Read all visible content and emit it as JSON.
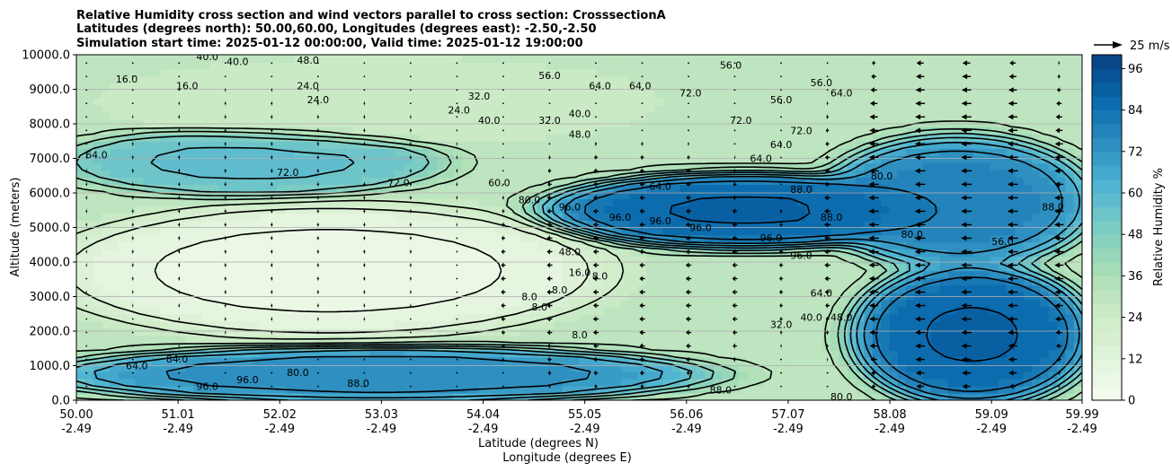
{
  "chart_data": {
    "type": "contour",
    "title_lines": [
      "Relative Humidity cross section and wind vectors parallel to cross section: CrosssectionA",
      "Latitudes (degrees north): 50.00,60.00, Longitudes (degrees east): -2.50,-2.50",
      "Simulation start time: 2025-01-12 00:00:00, Valid time: 2025-01-12 19:00:00"
    ],
    "xlabel_lat": "Latitude (degrees N)",
    "xlabel_lon": "Longitude (degrees E)",
    "ylabel": "Altitude (meters)",
    "colorbar_label": "Relative Humidity %",
    "quiver_key_label": "25 m/s",
    "xlim": [
      50.0,
      59.99
    ],
    "ylim": [
      0,
      10000
    ],
    "x_ticks": [
      {
        "lat": "50.00",
        "lon": "-2.49",
        "value": 50.0
      },
      {
        "lat": "51.01",
        "lon": "-2.49",
        "value": 51.01
      },
      {
        "lat": "52.02",
        "lon": "-2.49",
        "value": 52.02
      },
      {
        "lat": "53.03",
        "lon": "-2.49",
        "value": 53.03
      },
      {
        "lat": "54.04",
        "lon": "-2.49",
        "value": 54.04
      },
      {
        "lat": "55.05",
        "lon": "-2.49",
        "value": 55.05
      },
      {
        "lat": "56.06",
        "lon": "-2.49",
        "value": 56.06
      },
      {
        "lat": "57.07",
        "lon": "-2.49",
        "value": 57.07
      },
      {
        "lat": "58.08",
        "lon": "-2.49",
        "value": 58.08
      },
      {
        "lat": "59.09",
        "lon": "-2.49",
        "value": 59.09
      },
      {
        "lat": "59.99",
        "lon": "-2.49",
        "value": 59.99
      }
    ],
    "y_ticks": [
      {
        "label": "0.0",
        "value": 0
      },
      {
        "label": "1000.0",
        "value": 1000
      },
      {
        "label": "2000.0",
        "value": 2000
      },
      {
        "label": "3000.0",
        "value": 3000
      },
      {
        "label": "4000.0",
        "value": 4000
      },
      {
        "label": "5000.0",
        "value": 5000
      },
      {
        "label": "6000.0",
        "value": 6000
      },
      {
        "label": "7000.0",
        "value": 7000
      },
      {
        "label": "8000.0",
        "value": 8000
      },
      {
        "label": "9000.0",
        "value": 9000
      },
      {
        "label": "10000.0",
        "value": 10000
      }
    ],
    "colorbar_ticks": [
      0,
      12,
      24,
      36,
      48,
      60,
      72,
      84,
      96
    ],
    "colorbar_levels": [
      0,
      4,
      8,
      12,
      16,
      20,
      24,
      28,
      32,
      36,
      40,
      44,
      48,
      52,
      56,
      60,
      64,
      68,
      72,
      76,
      80,
      84,
      88,
      92,
      96,
      100
    ],
    "colormap": [
      "#f7fcf0",
      "#e0f3db",
      "#ccebc5",
      "#a8ddb5",
      "#7bccc4",
      "#4eb3d3",
      "#2b8cbe",
      "#0868ac",
      "#084081"
    ],
    "grid": "horizontal",
    "rh_regions": [
      {
        "name": "upper-left moist layer",
        "lat": [
          50.0,
          53.5
        ],
        "alt": [
          6000,
          7800
        ],
        "rh": 60
      },
      {
        "name": "upper dry tongue",
        "lat": [
          50.5,
          55.5
        ],
        "alt": [
          7500,
          9800
        ],
        "rh": 24
      },
      {
        "name": "mid-level dry air",
        "lat": [
          50.0,
          55.0
        ],
        "alt": [
          2000,
          5500
        ],
        "rh": 4
      },
      {
        "name": "boundary layer",
        "lat": [
          50.0,
          56.0
        ],
        "alt": [
          0,
          1500
        ],
        "rh": 80
      },
      {
        "name": "saturated frontal zone",
        "lat": [
          54.8,
          58.5
        ],
        "alt": [
          4500,
          6500
        ],
        "rh": 96
      },
      {
        "name": "northern saturated column",
        "lat": [
          57.8,
          59.99
        ],
        "alt": [
          0,
          3800
        ],
        "rh": 96
      },
      {
        "name": "northern mid-level",
        "lat": [
          57.5,
          59.99
        ],
        "alt": [
          4000,
          7500
        ],
        "rh": 84
      }
    ],
    "contour_labels": [
      {
        "text": "16.0",
        "lat": 50.5,
        "alt": 9300
      },
      {
        "text": "16.0",
        "lat": 51.1,
        "alt": 9100
      },
      {
        "text": "40.0",
        "lat": 51.3,
        "alt": 9950
      },
      {
        "text": "40.0",
        "lat": 51.6,
        "alt": 9800
      },
      {
        "text": "24.0",
        "lat": 52.3,
        "alt": 9100
      },
      {
        "text": "24.0",
        "lat": 52.4,
        "alt": 8700
      },
      {
        "text": "48.0",
        "lat": 52.3,
        "alt": 9850
      },
      {
        "text": "64.0",
        "lat": 50.2,
        "alt": 7100
      },
      {
        "text": "72.0",
        "lat": 52.1,
        "alt": 6600
      },
      {
        "text": "72.0",
        "lat": 53.2,
        "alt": 6300
      },
      {
        "text": "24.0",
        "lat": 53.8,
        "alt": 8400
      },
      {
        "text": "32.0",
        "lat": 54.0,
        "alt": 8800
      },
      {
        "text": "40.0",
        "lat": 54.1,
        "alt": 8100
      },
      {
        "text": "32.0",
        "lat": 54.7,
        "alt": 8100
      },
      {
        "text": "40.0",
        "lat": 55.0,
        "alt": 8300
      },
      {
        "text": "48.0",
        "lat": 55.0,
        "alt": 7700
      },
      {
        "text": "56.0",
        "lat": 54.7,
        "alt": 9400
      },
      {
        "text": "64.0",
        "lat": 55.2,
        "alt": 9100
      },
      {
        "text": "64.0",
        "lat": 55.6,
        "alt": 9100
      },
      {
        "text": "72.0",
        "lat": 56.1,
        "alt": 8900
      },
      {
        "text": "72.0",
        "lat": 56.6,
        "alt": 8100
      },
      {
        "text": "56.0",
        "lat": 56.5,
        "alt": 9700
      },
      {
        "text": "56.0",
        "lat": 57.0,
        "alt": 8700
      },
      {
        "text": "64.0",
        "lat": 56.8,
        "alt": 7000
      },
      {
        "text": "72.0",
        "lat": 57.2,
        "alt": 7800
      },
      {
        "text": "64.0",
        "lat": 57.0,
        "alt": 7400
      },
      {
        "text": "56.0",
        "lat": 57.4,
        "alt": 9200
      },
      {
        "text": "64.0",
        "lat": 57.6,
        "alt": 8900
      },
      {
        "text": "88.0",
        "lat": 57.2,
        "alt": 6100
      },
      {
        "text": "88.0",
        "lat": 57.5,
        "alt": 5300
      },
      {
        "text": "80.0",
        "lat": 58.0,
        "alt": 6500
      },
      {
        "text": "88.0",
        "lat": 59.7,
        "alt": 5600
      },
      {
        "text": "80.0",
        "lat": 58.3,
        "alt": 4800
      },
      {
        "text": "56.0",
        "lat": 59.2,
        "alt": 4600
      },
      {
        "text": "80.0",
        "lat": 54.5,
        "alt": 5800
      },
      {
        "text": "96.0",
        "lat": 54.9,
        "alt": 5600
      },
      {
        "text": "96.0",
        "lat": 55.4,
        "alt": 5300
      },
      {
        "text": "96.0",
        "lat": 55.8,
        "alt": 5200
      },
      {
        "text": "96.0",
        "lat": 56.2,
        "alt": 5000
      },
      {
        "text": "96.0",
        "lat": 56.9,
        "alt": 4700
      },
      {
        "text": "96.0",
        "lat": 57.2,
        "alt": 4200
      },
      {
        "text": "64.0",
        "lat": 55.8,
        "alt": 6200
      },
      {
        "text": "60.0",
        "lat": 54.2,
        "alt": 6300
      },
      {
        "text": "48.0",
        "lat": 54.9,
        "alt": 4300
      },
      {
        "text": "16.0",
        "lat": 55.0,
        "alt": 3700
      },
      {
        "text": "8.0",
        "lat": 54.8,
        "alt": 3200
      },
      {
        "text": "8.0",
        "lat": 55.2,
        "alt": 3600
      },
      {
        "text": "8.0",
        "lat": 54.5,
        "alt": 3000
      },
      {
        "text": "8.0",
        "lat": 54.6,
        "alt": 2700
      },
      {
        "text": "8.0",
        "lat": 55.0,
        "alt": 1900
      },
      {
        "text": "64.0",
        "lat": 57.4,
        "alt": 3100
      },
      {
        "text": "40.0",
        "lat": 57.3,
        "alt": 2400
      },
      {
        "text": "48.0",
        "lat": 57.6,
        "alt": 2400
      },
      {
        "text": "32.0",
        "lat": 57.0,
        "alt": 2200
      },
      {
        "text": "80.0",
        "lat": 52.2,
        "alt": 800
      },
      {
        "text": "88.0",
        "lat": 52.8,
        "alt": 500
      },
      {
        "text": "88.0",
        "lat": 56.4,
        "alt": 300
      },
      {
        "text": "80.0",
        "lat": 57.6,
        "alt": 100
      },
      {
        "text": "64.0",
        "lat": 50.6,
        "alt": 1000
      },
      {
        "text": "84.0",
        "lat": 51.0,
        "alt": 1200
      },
      {
        "text": "96.0",
        "lat": 51.7,
        "alt": 600
      },
      {
        "text": "96.0",
        "lat": 51.3,
        "alt": 400
      }
    ],
    "wind_field": {
      "description": "wind vectors parallel to cross section",
      "regions": [
        {
          "name": "southern mid-levels",
          "lat": [
            50.0,
            54.0
          ],
          "alt": [
            2000,
            9000
          ],
          "u_ms": 3
        },
        {
          "name": "central jet",
          "lat": [
            54.0,
            57.0
          ],
          "alt": [
            500,
            7000
          ],
          "u_ms": -8
        },
        {
          "name": "northern strong flow",
          "lat": [
            57.5,
            59.99
          ],
          "alt": [
            0,
            10000
          ],
          "u_ms": -15
        }
      ]
    }
  }
}
